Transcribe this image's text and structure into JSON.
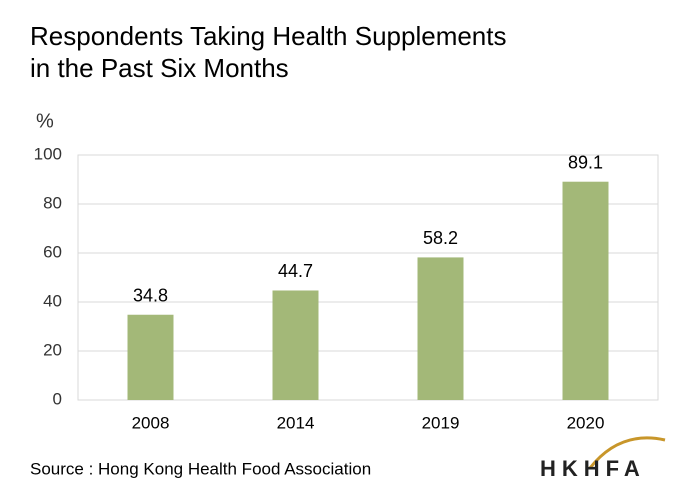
{
  "chart_data": {
    "type": "bar",
    "title": [
      "Respondents Taking Health Supplements",
      "in the Past Six Months"
    ],
    "y_label": "%",
    "categories": [
      "2008",
      "2014",
      "2019",
      "2020"
    ],
    "values": [
      34.8,
      44.7,
      58.2,
      89.1
    ],
    "color": "#a3b878",
    "ylim": [
      0,
      100
    ],
    "yticks": [
      0,
      20,
      40,
      60,
      80,
      100
    ],
    "grid": true,
    "source": "Source : Hong Kong Health Food Association",
    "logo": "HKHFA"
  }
}
